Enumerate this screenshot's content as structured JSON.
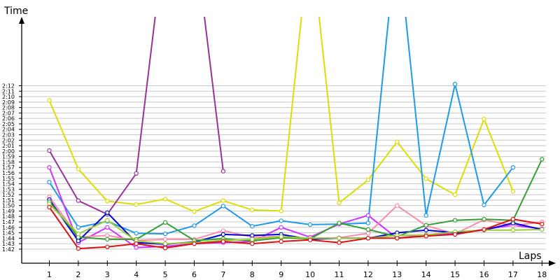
{
  "chart_data": {
    "type": "line",
    "ylabel": "Time",
    "xlabel": "Laps",
    "y_unit": "seconds",
    "x": [
      1,
      2,
      3,
      4,
      5,
      6,
      7,
      8,
      9,
      10,
      11,
      12,
      13,
      14,
      15,
      16,
      17,
      18
    ],
    "ylim": [
      95,
      135
    ],
    "grid": "horizontal",
    "yticks": [
      {
        "v": 102,
        "label": "1:42"
      },
      {
        "v": 103,
        "label": "1:43"
      },
      {
        "v": 104,
        "label": "1:44"
      },
      {
        "v": 105,
        "label": "1:45"
      },
      {
        "v": 106,
        "label": "1:46"
      },
      {
        "v": 107,
        "label": "1:47"
      },
      {
        "v": 108,
        "label": "1:48"
      },
      {
        "v": 109,
        "label": "1:49"
      },
      {
        "v": 110,
        "label": "1:50"
      },
      {
        "v": 111,
        "label": "1:51"
      },
      {
        "v": 112,
        "label": "1:52"
      },
      {
        "v": 113,
        "label": "1:53"
      },
      {
        "v": 114,
        "label": "1:54"
      },
      {
        "v": 115,
        "label": "1:55"
      },
      {
        "v": 116,
        "label": "1:56"
      },
      {
        "v": 117,
        "label": "1:57"
      },
      {
        "v": 118,
        "label": "1:58"
      },
      {
        "v": 119,
        "label": "1:59"
      },
      {
        "v": 120,
        "label": "2:00"
      },
      {
        "v": 121,
        "label": "2:01"
      },
      {
        "v": 122,
        "label": "2:02"
      },
      {
        "v": 123,
        "label": "2:03"
      },
      {
        "v": 124,
        "label": "2:04"
      },
      {
        "v": 125,
        "label": "2:05"
      },
      {
        "v": 126,
        "label": "2:06"
      },
      {
        "v": 127,
        "label": "2:07"
      },
      {
        "v": 128,
        "label": "2:08"
      },
      {
        "v": 129,
        "label": "2:09"
      },
      {
        "v": 130,
        "label": "2:10"
      },
      {
        "v": 131,
        "label": "2:11"
      },
      {
        "v": 132,
        "label": "2:12"
      }
    ],
    "series": [
      {
        "color": "#dddd00",
        "values": [
          129.3,
          116.7,
          110.8,
          110.2,
          111.2,
          108.9,
          110.9,
          109.2,
          109.0,
          160,
          110.5,
          114.7,
          121.7,
          114.9,
          112.0,
          125.9,
          112.6,
          null
        ]
      },
      {
        "color": "#993399",
        "values": [
          120.1,
          110.9,
          108.4,
          115.9,
          160,
          160,
          116.3,
          null,
          null,
          null,
          null,
          null,
          null,
          null,
          null,
          null,
          null,
          null
        ]
      },
      {
        "color": "#1e9be8",
        "values": [
          114.3,
          106.0,
          107.1,
          104.9,
          104.8,
          106.3,
          109.9,
          106.2,
          107.2,
          106.5,
          106.6,
          106.8,
          160,
          108.2,
          132.3,
          110.1,
          117.0,
          null
        ]
      },
      {
        "color": "#cc33ff",
        "values": [
          117.0,
          103.2,
          106.0,
          102.3,
          102.5,
          103.0,
          103.2,
          103.4,
          106.0,
          104.2,
          106.6,
          108.2,
          104.0,
          104.6,
          104.9,
          105.6,
          106.4,
          105.7
        ]
      },
      {
        "color": "#ff88aa",
        "values": [
          111.6,
          104.2,
          104.5,
          103.6,
          103.8,
          103.8,
          105.4,
          104.2,
          104.3,
          104.0,
          104.1,
          104.9,
          110.0,
          106.3,
          104.8,
          107.4,
          106.3,
          107.0
        ]
      },
      {
        "color": "#0000dd",
        "values": [
          111.1,
          103.5,
          108.7,
          103.2,
          102.9,
          103.3,
          104.7,
          104.5,
          104.7,
          103.8,
          104.0,
          104.0,
          105.0,
          105.5,
          105.0,
          105.5,
          106.8,
          105.6
        ]
      },
      {
        "color": "#33a033",
        "values": [
          110.7,
          104.2,
          103.8,
          103.8,
          106.9,
          103.6,
          103.9,
          103.5,
          104.1,
          103.9,
          106.8,
          105.6,
          104.3,
          106.4,
          107.3,
          107.5,
          107.3,
          118.5
        ]
      },
      {
        "color": "#99cc33",
        "values": [
          110.3,
          104.8,
          107.3,
          103.5,
          103.0,
          103.2,
          103.6,
          103.8,
          104.3,
          104.0,
          104.0,
          104.0,
          104.5,
          104.6,
          105.2,
          105.5,
          105.5,
          105.6
        ]
      },
      {
        "color": "#dd1111",
        "values": [
          109.7,
          102.1,
          102.4,
          103.0,
          102.2,
          103.0,
          103.4,
          103.0,
          103.4,
          103.7,
          103.2,
          104.0,
          104.0,
          104.4,
          104.7,
          105.6,
          107.5,
          106.6
        ]
      }
    ]
  }
}
